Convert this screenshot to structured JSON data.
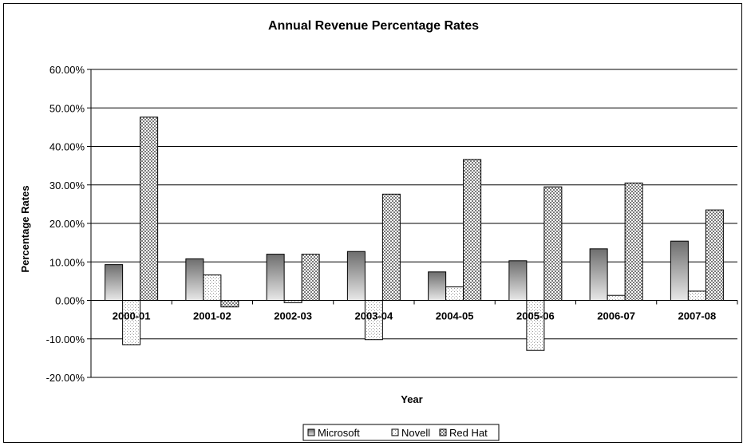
{
  "chart_data": {
    "type": "bar",
    "title": "Annual Revenue Percentage Rates",
    "xlabel": "Year",
    "ylabel": "Percentage Rates",
    "categories": [
      "2000-01",
      "2001-02",
      "2002-03",
      "2003-04",
      "2004-05",
      "2005-06",
      "2006-07",
      "2007-08"
    ],
    "series": [
      {
        "name": "Microsoft",
        "values": [
          9.3,
          10.8,
          12.0,
          12.7,
          7.4,
          10.3,
          13.4,
          15.4
        ],
        "color": "#808080",
        "pattern": "gradient"
      },
      {
        "name": "Novell",
        "values": [
          -11.5,
          6.6,
          -0.6,
          -10.2,
          3.5,
          -13.0,
          1.3,
          2.4
        ],
        "color": "#ffffff",
        "pattern": "dots"
      },
      {
        "name": "Red Hat",
        "values": [
          47.6,
          -1.7,
          12.0,
          27.6,
          36.6,
          29.5,
          30.5,
          23.5
        ],
        "color": "#b0b0b0",
        "pattern": "checker"
      }
    ],
    "yticks": [
      "60.00%",
      "50.00%",
      "40.00%",
      "30.00%",
      "20.00%",
      "10.00%",
      "0.00%",
      "-10.00%",
      "-20.00%"
    ],
    "ylim": [
      -20,
      60
    ],
    "grid": true,
    "legend": "bottom"
  }
}
